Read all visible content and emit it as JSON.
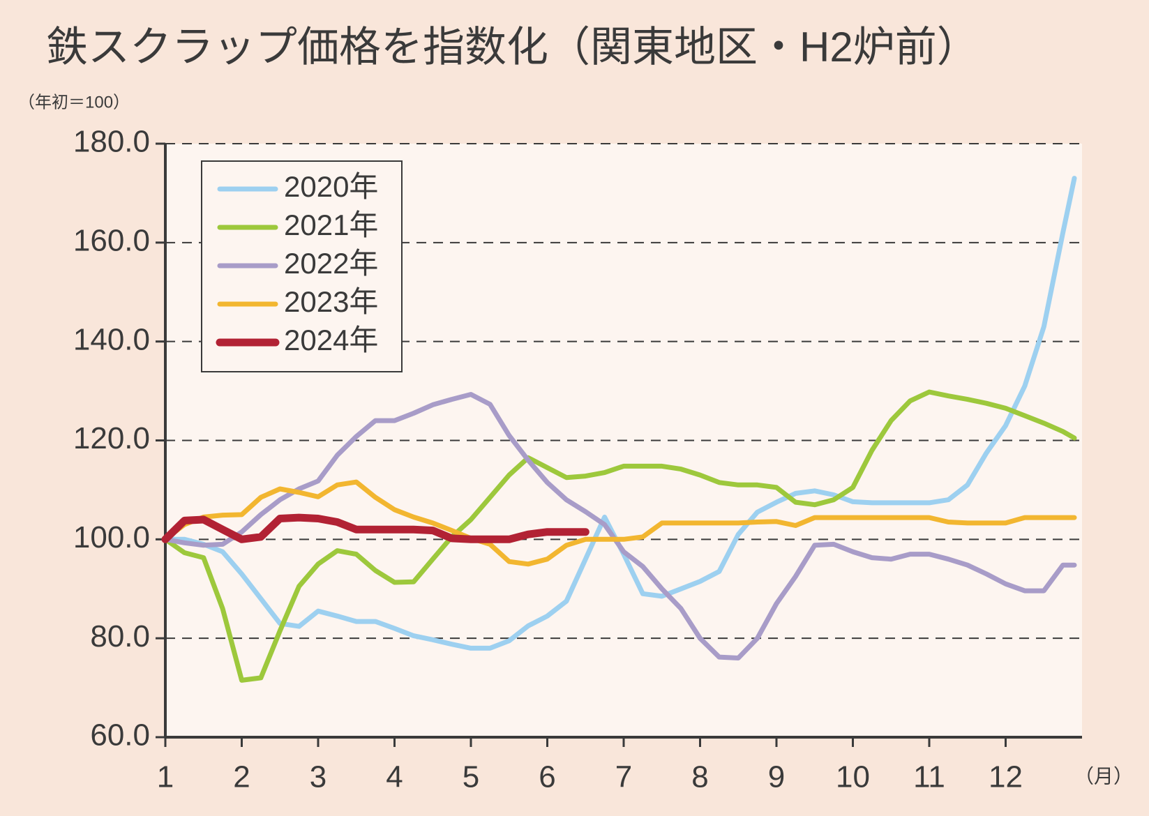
{
  "chart_data": {
    "type": "line",
    "title": "鉄スクラップ価格を指数化（関東地区・H2炉前）",
    "y_axis_label": "（年初＝100）",
    "x_axis_label": "（月）",
    "x": [
      1,
      1.25,
      1.5,
      1.75,
      2,
      2.25,
      2.5,
      2.75,
      3,
      3.25,
      3.5,
      3.75,
      4,
      4.25,
      4.5,
      4.75,
      5,
      5.25,
      5.5,
      5.75,
      6,
      6.25,
      6.5,
      6.75,
      7,
      7.25,
      7.5,
      7.75,
      8,
      8.25,
      8.5,
      8.75,
      9,
      9.25,
      9.5,
      9.75,
      10,
      10.25,
      10.5,
      10.75,
      11,
      11.25,
      11.5,
      11.75,
      12,
      12.25,
      12.5,
      12.75,
      12.9
    ],
    "series": [
      {
        "name": "2020年",
        "color": "#9dd0f0",
        "line_width": 7,
        "values": [
          100,
          100,
          99,
          97.5,
          93,
          88,
          83,
          82.4,
          85.5,
          84.5,
          83.4,
          83.4,
          82,
          80.5,
          79.7,
          78.8,
          78,
          78,
          79.5,
          82.5,
          84.5,
          87.5,
          96,
          104.5,
          97,
          89,
          88.5,
          90,
          91.5,
          93.5,
          101,
          105.5,
          107.5,
          109.3,
          109.8,
          109,
          107.6,
          107.4,
          107.4,
          107.4,
          107.4,
          108,
          111,
          117.5,
          123,
          131,
          143,
          162,
          173
        ]
      },
      {
        "name": "2021年",
        "color": "#9dc83c",
        "line_width": 7,
        "values": [
          100,
          97.3,
          96.3,
          86,
          71.5,
          72,
          81.5,
          90.5,
          95,
          97.7,
          97,
          93.7,
          91.3,
          91.4,
          96,
          100.5,
          104,
          108.5,
          113,
          116.5,
          114.5,
          112.5,
          112.8,
          113.5,
          114.8,
          114.8,
          114.8,
          114.2,
          113,
          111.5,
          111,
          111,
          110.5,
          107.5,
          107,
          108,
          110.5,
          118,
          124,
          128,
          129.8,
          129,
          128.3,
          127.5,
          126.5,
          125,
          123.5,
          121.8,
          120.5
        ]
      },
      {
        "name": "2022年",
        "color": "#a89cc8",
        "line_width": 7,
        "values": [
          100,
          99.3,
          98.8,
          99,
          101.5,
          105,
          108,
          110.2,
          111.8,
          117,
          120.8,
          124,
          124,
          125.5,
          127.2,
          128.3,
          129.3,
          127.3,
          121,
          116,
          111.5,
          108,
          105.6,
          103,
          97.5,
          94.5,
          90,
          86,
          80,
          76.2,
          76,
          80,
          87,
          92.5,
          98.8,
          99,
          97.5,
          96.3,
          96,
          97,
          97,
          96,
          94.8,
          93,
          91,
          89.6,
          89.6,
          94.8,
          94.8
        ]
      },
      {
        "name": "2023年",
        "color": "#f2b630",
        "line_width": 7,
        "values": [
          100,
          103,
          104.5,
          104.9,
          105,
          108.5,
          110.2,
          109.5,
          108.6,
          111,
          111.6,
          108.5,
          106,
          104.5,
          103.3,
          101.8,
          100.2,
          99,
          95.5,
          95,
          96,
          98.8,
          100,
          100,
          100,
          100.5,
          103.3,
          103.3,
          103.3,
          103.3,
          103.3,
          103.5,
          103.6,
          102.8,
          104.4,
          104.4,
          104.4,
          104.4,
          104.4,
          104.4,
          104.4,
          103.5,
          103.3,
          103.3,
          103.3,
          104.4,
          104.4,
          104.4,
          104.4
        ]
      },
      {
        "name": "2024年",
        "color": "#b22234",
        "line_width": 11,
        "values": [
          100,
          103.8,
          104,
          102,
          100,
          100.5,
          104.2,
          104.4,
          104.2,
          103.5,
          102,
          102,
          102,
          102,
          101.8,
          100.2,
          100,
          100,
          100,
          101,
          101.5,
          101.5,
          101.5,
          null,
          null,
          null,
          null,
          null,
          null,
          null,
          null,
          null,
          null,
          null,
          null,
          null,
          null,
          null,
          null,
          null,
          null,
          null,
          null,
          null,
          null,
          null,
          null,
          null,
          null
        ]
      }
    ],
    "xlim": [
      1,
      13
    ],
    "xticks": [
      1,
      2,
      3,
      4,
      5,
      6,
      7,
      8,
      9,
      10,
      11,
      12
    ],
    "ylim": [
      60,
      180
    ],
    "yticks": [
      {
        "value": 60,
        "label": "60.0"
      },
      {
        "value": 80,
        "label": "80.0"
      },
      {
        "value": 100,
        "label": "100.0"
      },
      {
        "value": 120,
        "label": "120.0"
      },
      {
        "value": 140,
        "label": "140.0"
      },
      {
        "value": 160,
        "label": "160.0"
      },
      {
        "value": 180,
        "label": "180.0"
      }
    ],
    "grid": true,
    "legend": "upper-left"
  }
}
